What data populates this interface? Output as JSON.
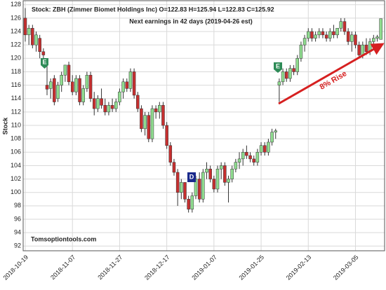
{
  "chart_data": {
    "type": "candlestick",
    "title": "Stock: ZBH (Zimmer Biomet Holdings Inc) O=122.83  H=125.94  L=122.83  C=125.92",
    "subtitle": "Next earnings in 42 days  (2019-04-26 est)",
    "y_label": "Stock",
    "watermark": "Tomsoptiontools.com",
    "annotation": "8% Rise",
    "markers": [
      "E",
      "E",
      "D"
    ],
    "up_color": "#8fdc8f",
    "down_color": "#c62f2f",
    "grid": true,
    "ylim": [
      91.3,
      128.6
    ],
    "yticks": [
      92,
      94,
      96,
      98,
      100,
      102,
      104,
      106,
      108,
      110,
      112,
      114,
      116,
      118,
      120,
      122,
      124,
      126,
      128
    ],
    "categories": [
      "2018-10-19",
      null,
      null,
      null,
      null,
      null,
      null,
      null,
      null,
      null,
      null,
      null,
      null,
      "2018-11-07",
      null,
      null,
      null,
      null,
      null,
      null,
      null,
      null,
      null,
      null,
      null,
      null,
      "2018-11-27",
      null,
      null,
      null,
      null,
      null,
      null,
      null,
      null,
      null,
      null,
      null,
      null,
      "2018-12-17",
      null,
      null,
      null,
      null,
      null,
      null,
      null,
      null,
      null,
      null,
      null,
      null,
      "2019-01-07",
      null,
      null,
      null,
      null,
      null,
      null,
      null,
      null,
      null,
      null,
      null,
      null,
      "2019-01-25",
      null,
      null,
      null,
      null,
      null,
      null,
      null,
      null,
      null,
      null,
      null,
      null,
      "2019-02-13",
      null,
      null,
      null,
      null,
      null,
      null,
      null,
      null,
      null,
      null,
      null,
      null,
      "2019-03-05",
      null,
      null,
      null,
      null,
      null,
      null,
      null
    ],
    "open": [
      126,
      123.5,
      124.5,
      122,
      123,
      121,
      116,
      115.5,
      117,
      114,
      116,
      117.5,
      119,
      116.5,
      115,
      117,
      113.5,
      115.5,
      117.5,
      114,
      112.5,
      114,
      113,
      112,
      113,
      112.5,
      113.5,
      115,
      116.5,
      115.5,
      118,
      114.5,
      112.5,
      109.5,
      111.5,
      108,
      112.5,
      112,
      113,
      110,
      107,
      104.5,
      103,
      100,
      101.5,
      99,
      97.5,
      99.5,
      102,
      99,
      103,
      103.5,
      102,
      100.5,
      103.5,
      104,
      101.5,
      102,
      103.5,
      104.5,
      105,
      106,
      105.5,
      105,
      104.5,
      106,
      107,
      106,
      107.5,
      109,
      116,
      116.5,
      118,
      117,
      118.5,
      118,
      120,
      122,
      123,
      124,
      123,
      123.5,
      124,
      123.5,
      123,
      124,
      123.5,
      124.5,
      125.5,
      124,
      122.5,
      123.5,
      122,
      120.5,
      122,
      121,
      122.5,
      123,
      122.83
    ],
    "high": [
      127.5,
      125,
      125,
      124,
      123.5,
      121.5,
      119,
      117,
      117.5,
      116.5,
      118,
      119,
      119.5,
      117.5,
      117.5,
      117.5,
      116,
      118,
      118,
      115,
      114.5,
      115.5,
      114,
      113.5,
      114,
      114,
      115.5,
      117,
      117,
      118.5,
      118.5,
      115,
      113,
      112,
      112,
      113,
      113,
      113.5,
      113.5,
      110.5,
      107.5,
      105,
      103.5,
      102,
      101.5,
      99.5,
      100,
      102.5,
      103,
      103.5,
      104.5,
      104,
      102.5,
      104,
      104.5,
      104.5,
      102.5,
      104,
      105,
      106,
      106.5,
      107,
      106,
      105.5,
      106.5,
      107.5,
      107.5,
      108,
      109.5,
      109.5,
      117,
      118.5,
      118.5,
      119,
      119,
      120.5,
      122.5,
      123.5,
      124.5,
      124.5,
      124,
      124.5,
      124.5,
      124,
      124.5,
      125,
      124.5,
      126,
      126,
      124.5,
      124,
      124,
      122.5,
      122.5,
      123,
      123,
      123.5,
      123.5,
      125.94
    ],
    "low": [
      122.5,
      122,
      121.5,
      121,
      120,
      119.5,
      114.5,
      114,
      113,
      113.5,
      115,
      116.5,
      116,
      114.5,
      114.5,
      113,
      113,
      115,
      113.5,
      111.5,
      112,
      112.5,
      111.5,
      111.5,
      112,
      112,
      113,
      114,
      115,
      115,
      114,
      112,
      109,
      108.5,
      107.5,
      107.5,
      111,
      111,
      109.5,
      106.5,
      104,
      102.5,
      98,
      99,
      98.5,
      97,
      97,
      99,
      98.5,
      98.5,
      102,
      101.5,
      100,
      100,
      102,
      101,
      98.5,
      101.5,
      103,
      103.5,
      104,
      105,
      104.5,
      104,
      104,
      105.5,
      105.5,
      105.5,
      107,
      108,
      113.5,
      116,
      116.5,
      116.5,
      117.5,
      117.5,
      119.5,
      121,
      122.5,
      122.5,
      122.5,
      123,
      123,
      122.5,
      122.5,
      123,
      123,
      124,
      123.5,
      122,
      121,
      121.5,
      120,
      120,
      120.5,
      120.5,
      122,
      122.5,
      122.83
    ],
    "close": [
      123.5,
      124.5,
      122,
      123.5,
      121,
      120.5,
      115.4,
      116.5,
      113.5,
      116,
      117.5,
      119,
      116.5,
      115,
      117,
      113.5,
      115.5,
      117.5,
      114,
      112.5,
      114,
      113,
      112,
      113,
      112.5,
      113.5,
      115,
      116.5,
      115.5,
      118,
      114.5,
      112.5,
      109.5,
      111.5,
      108,
      112.5,
      112,
      113,
      110,
      107,
      104.5,
      103,
      100,
      101.5,
      99,
      97.5,
      99.5,
      102,
      99,
      103,
      103.5,
      102,
      100.5,
      103.5,
      104,
      101.5,
      102,
      103.5,
      104.5,
      105,
      106,
      105.5,
      105,
      104.5,
      106,
      107,
      106,
      107.5,
      109,
      109.2,
      116.5,
      118,
      117,
      118.5,
      118,
      120,
      122,
      123,
      124,
      123,
      123.5,
      124,
      123.5,
      123,
      124,
      123.5,
      124.5,
      125.5,
      124,
      122.5,
      123.5,
      122,
      120.5,
      122,
      121,
      122.5,
      123,
      123.2,
      125.92
    ]
  }
}
